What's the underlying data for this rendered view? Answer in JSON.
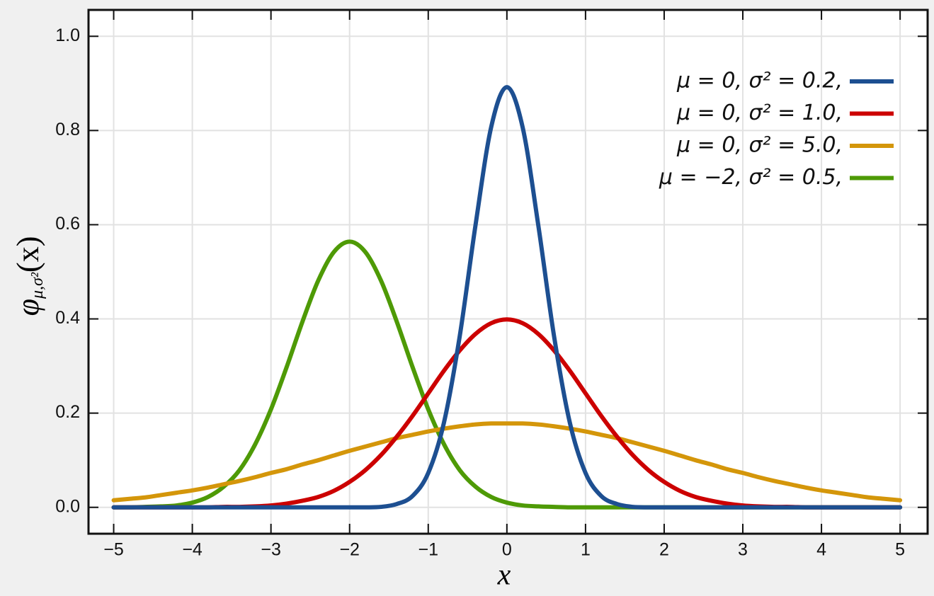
{
  "chart_data": {
    "type": "line",
    "x_label": "x",
    "y_label": {
      "main": "φ",
      "sub": "μ,σ²",
      "arg": "(x)"
    },
    "x": [
      -5.0,
      -4.8,
      -4.6,
      -4.4,
      -4.2,
      -4.0,
      -3.8,
      -3.6,
      -3.4,
      -3.2,
      -3.0,
      -2.8,
      -2.6,
      -2.4,
      -2.2,
      -2.0,
      -1.8,
      -1.6,
      -1.4,
      -1.2,
      -1.0,
      -0.8,
      -0.6,
      -0.4,
      -0.2,
      0.0,
      0.2,
      0.4,
      0.6,
      0.8,
      1.0,
      1.2,
      1.4,
      1.6,
      1.8,
      2.0,
      2.2,
      2.4,
      2.6,
      2.8,
      3.0,
      3.2,
      3.4,
      3.6,
      3.8,
      4.0,
      4.2,
      4.4,
      4.6,
      4.8,
      5.0
    ],
    "series": [
      {
        "name": "μ = 0,   σ² = 0.2,",
        "color": "#1d4f91",
        "values": [
          0,
          0,
          0,
          0,
          0,
          0,
          0,
          0,
          0,
          0,
          0,
          0,
          0,
          0,
          0,
          0,
          0,
          0.001,
          0.007,
          0.024,
          0.073,
          0.18,
          0.363,
          0.598,
          0.807,
          0.892,
          0.807,
          0.598,
          0.363,
          0.18,
          0.073,
          0.024,
          0.007,
          0.001,
          0,
          0,
          0,
          0,
          0,
          0,
          0,
          0,
          0,
          0,
          0,
          0,
          0,
          0,
          0,
          0,
          0
        ]
      },
      {
        "name": "μ = 0,   σ² = 1.0,",
        "color": "#cc0000",
        "values": [
          0,
          0,
          0,
          0,
          0,
          0,
          0,
          0.001,
          0.001,
          0.002,
          0.004,
          0.008,
          0.014,
          0.022,
          0.035,
          0.054,
          0.079,
          0.111,
          0.15,
          0.194,
          0.242,
          0.29,
          0.333,
          0.368,
          0.391,
          0.399,
          0.391,
          0.368,
          0.333,
          0.29,
          0.242,
          0.194,
          0.15,
          0.111,
          0.079,
          0.054,
          0.035,
          0.022,
          0.014,
          0.008,
          0.004,
          0.002,
          0.001,
          0.001,
          0,
          0,
          0,
          0,
          0,
          0,
          0
        ]
      },
      {
        "name": "μ = 0,   σ² = 5.0,",
        "color": "#d4960a",
        "values": [
          0.015,
          0.018,
          0.021,
          0.026,
          0.031,
          0.036,
          0.042,
          0.049,
          0.056,
          0.064,
          0.073,
          0.081,
          0.091,
          0.1,
          0.11,
          0.12,
          0.129,
          0.138,
          0.147,
          0.154,
          0.161,
          0.167,
          0.172,
          0.176,
          0.178,
          0.178,
          0.178,
          0.176,
          0.172,
          0.167,
          0.161,
          0.154,
          0.147,
          0.138,
          0.129,
          0.12,
          0.11,
          0.1,
          0.091,
          0.081,
          0.073,
          0.064,
          0.056,
          0.049,
          0.042,
          0.036,
          0.031,
          0.026,
          0.021,
          0.018,
          0.015
        ]
      },
      {
        "name": "μ = −2,  σ² = 0.5,",
        "color": "#4e9a06",
        "values": [
          0,
          0,
          0.001,
          0.002,
          0.004,
          0.01,
          0.022,
          0.044,
          0.079,
          0.134,
          0.208,
          0.298,
          0.394,
          0.481,
          0.542,
          0.564,
          0.542,
          0.481,
          0.394,
          0.298,
          0.208,
          0.134,
          0.079,
          0.044,
          0.022,
          0.01,
          0.004,
          0.002,
          0.001,
          0,
          0,
          0,
          0,
          0,
          0,
          0,
          0,
          0,
          0,
          0,
          0,
          0,
          0,
          0,
          0,
          0,
          0,
          0,
          0,
          0,
          0
        ]
      }
    ],
    "xlim": [
      -5.32,
      5.35
    ],
    "ylim": [
      -0.056,
      1.056
    ],
    "xticks": [
      {
        "value": -5,
        "label": "−5"
      },
      {
        "value": -4,
        "label": "−4"
      },
      {
        "value": -3,
        "label": "−3"
      },
      {
        "value": -2,
        "label": "−2"
      },
      {
        "value": -1,
        "label": "−1"
      },
      0,
      1,
      2,
      3,
      4,
      5
    ],
    "yticks": [
      {
        "value": 0,
        "label": "0.0"
      },
      0.2,
      0.4,
      0.6,
      0.8,
      {
        "value": 1,
        "label": "1.0"
      }
    ],
    "grid": true,
    "legend": "upper right"
  }
}
